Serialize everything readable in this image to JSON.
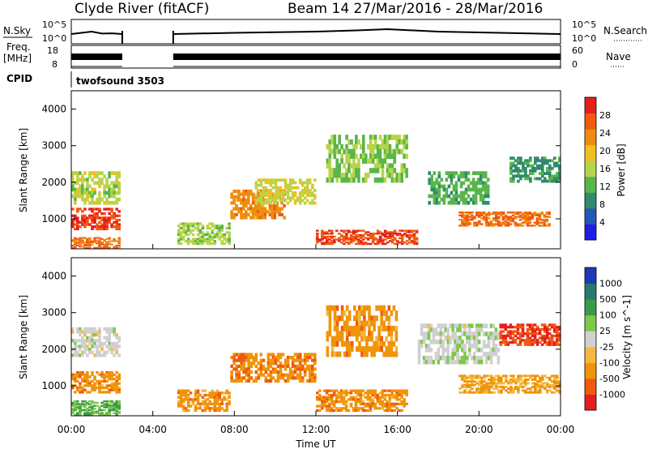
{
  "chart_data": [
    {
      "type": "line",
      "panel": "noise",
      "title": "Clyde River (fitACF)",
      "subtitle": "Beam 14  27/Mar/2016 - 28/Mar/2016",
      "left_label": "N.Sky",
      "right_label": "N.Search",
      "left_ticks": [
        "10^5",
        "10^0"
      ],
      "right_ticks": [
        "10^5",
        "10^0"
      ],
      "x_range_hours": [
        0,
        24
      ],
      "data_gap_hours": [
        2.5,
        5.0
      ],
      "series": [
        {
          "values_hours": [
            [
              0.0,
              0.4
            ],
            [
              0.5,
              0.45
            ],
            [
              1.0,
              0.5
            ],
            [
              1.5,
              0.42
            ],
            [
              2.0,
              0.43
            ],
            [
              2.5,
              0.4
            ],
            [
              5.0,
              0.4
            ],
            [
              8.0,
              0.45
            ],
            [
              12.0,
              0.5
            ],
            [
              14.0,
              0.55
            ],
            [
              15.5,
              0.6
            ],
            [
              18.0,
              0.5
            ],
            [
              21.0,
              0.45
            ],
            [
              24.0,
              0.4
            ]
          ]
        }
      ]
    },
    {
      "type": "line",
      "panel": "frequency",
      "left_label": "Freq.",
      "left_unit": "[MHz]",
      "right_label": "Nave",
      "left_ticks": [
        "18",
        "8"
      ],
      "right_ticks": [
        "60",
        "0"
      ],
      "x_range_hours": [
        0,
        24
      ],
      "data_gap_hours": [
        2.5,
        5.0
      ]
    },
    {
      "type": "table",
      "panel": "cpid",
      "label": "CPID",
      "value": "twofsound 3503"
    },
    {
      "type": "heatmap",
      "panel": "power",
      "ylabel": "Slant Range [km]",
      "xlabel": "",
      "x_range_hours": [
        0,
        24
      ],
      "ylim": [
        180,
        4500
      ],
      "yticks": [
        1000,
        2000,
        3000,
        4000
      ],
      "colorbar_label": "Power [dB]",
      "colorbar_ticks": [
        "4",
        "8",
        "12",
        "16",
        "20",
        "24",
        "28"
      ],
      "colorbar_range": [
        0,
        30
      ],
      "blobs": [
        {
          "t": [
            0.0,
            2.4
          ],
          "r": [
            700,
            1300
          ],
          "v": 27
        },
        {
          "t": [
            0.0,
            2.4
          ],
          "r": [
            1400,
            2300
          ],
          "v": 15
        },
        {
          "t": [
            0.0,
            2.4
          ],
          "r": [
            200,
            500
          ],
          "v": 24
        },
        {
          "t": [
            5.2,
            7.8
          ],
          "r": [
            300,
            900
          ],
          "v": 14
        },
        {
          "t": [
            7.8,
            10.5
          ],
          "r": [
            1000,
            1800
          ],
          "v": 22
        },
        {
          "t": [
            9.0,
            12.0
          ],
          "r": [
            1400,
            2100
          ],
          "v": 16
        },
        {
          "t": [
            12.0,
            17.0
          ],
          "r": [
            300,
            700
          ],
          "v": 26
        },
        {
          "t": [
            12.5,
            16.5
          ],
          "r": [
            2000,
            3300
          ],
          "v": 13
        },
        {
          "t": [
            17.5,
            20.5
          ],
          "r": [
            1400,
            2300
          ],
          "v": 11
        },
        {
          "t": [
            19.0,
            23.5
          ],
          "r": [
            800,
            1200
          ],
          "v": 24
        },
        {
          "t": [
            21.5,
            24.0
          ],
          "r": [
            2000,
            2700
          ],
          "v": 9
        }
      ]
    },
    {
      "type": "heatmap",
      "panel": "velocity",
      "ylabel": "Slant Range [km]",
      "xlabel": "Time UT",
      "x_range_hours": [
        0,
        24
      ],
      "ylim": [
        180,
        4500
      ],
      "yticks": [
        1000,
        2000,
        3000,
        4000
      ],
      "xticks": [
        "00:00",
        "04:00",
        "08:00",
        "12:00",
        "16:00",
        "20:00",
        "00:00"
      ],
      "colorbar_label": "Velocity [m s^-1]",
      "colorbar_ticks": [
        "-1000",
        "-500",
        "-100",
        "-25",
        "25",
        "100",
        "500",
        "1000"
      ],
      "blobs": [
        {
          "t": [
            0.0,
            2.4
          ],
          "r": [
            800,
            1400
          ],
          "v": -150
        },
        {
          "t": [
            0.0,
            2.4
          ],
          "r": [
            1800,
            2600
          ],
          "v": 0
        },
        {
          "t": [
            0.0,
            2.4
          ],
          "r": [
            200,
            600
          ],
          "v": 80
        },
        {
          "t": [
            5.2,
            7.8
          ],
          "r": [
            300,
            900
          ],
          "v": -120
        },
        {
          "t": [
            7.8,
            12.0
          ],
          "r": [
            1100,
            1900
          ],
          "v": -200
        },
        {
          "t": [
            12.0,
            16.5
          ],
          "r": [
            300,
            900
          ],
          "v": -150
        },
        {
          "t": [
            12.5,
            16.0
          ],
          "r": [
            1800,
            3200
          ],
          "v": -130
        },
        {
          "t": [
            17.0,
            21.0
          ],
          "r": [
            1600,
            2700
          ],
          "v": 5
        },
        {
          "t": [
            21.0,
            24.0
          ],
          "r": [
            2100,
            2700
          ],
          "v": -600
        },
        {
          "t": [
            19.0,
            24.0
          ],
          "r": [
            800,
            1300
          ],
          "v": -80
        }
      ]
    }
  ],
  "colors": {
    "power_scale": [
      "#1e1ee6",
      "#2458b4",
      "#2f8a6e",
      "#58b64a",
      "#b8d44a",
      "#f0c020",
      "#f08c10",
      "#f05a10",
      "#e61e1e"
    ],
    "velocity_scale": [
      "#e61e1e",
      "#f05a10",
      "#f0940a",
      "#f4b840",
      "#d0d0d0",
      "#7fc84a",
      "#3a9a4a",
      "#2a7a6a",
      "#1e3ab4"
    ]
  }
}
